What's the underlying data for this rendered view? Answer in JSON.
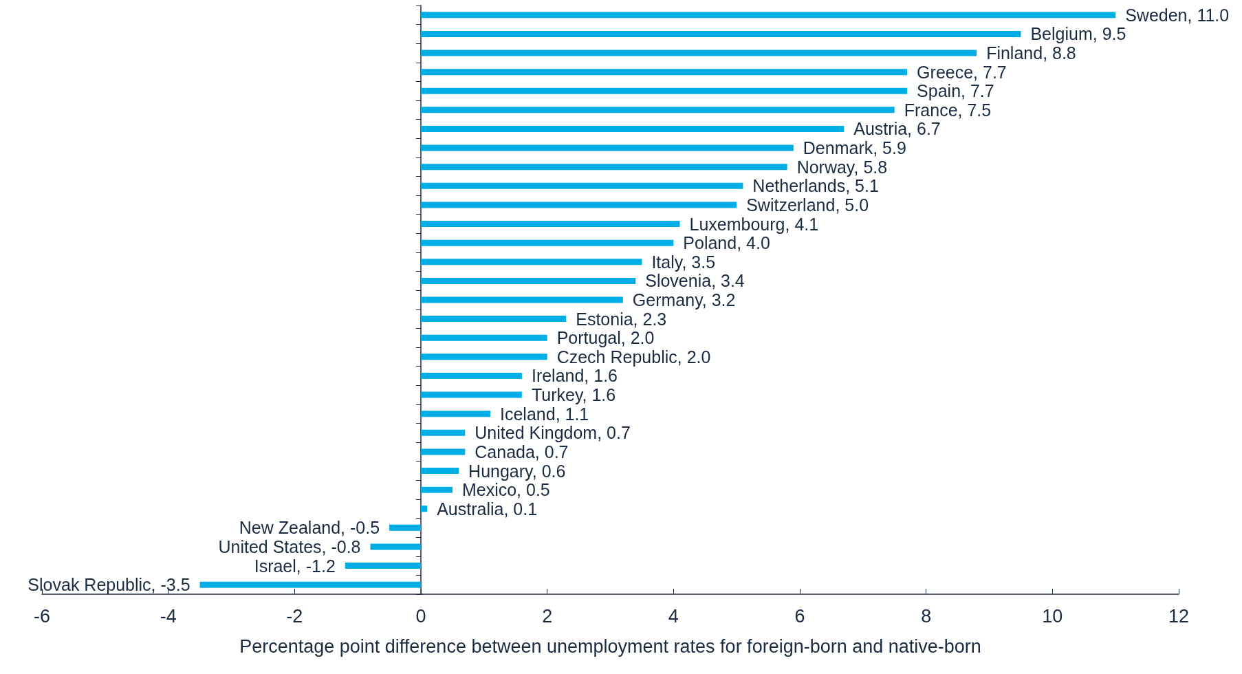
{
  "chart_data": {
    "type": "bar",
    "orientation": "horizontal",
    "xlabel": "Percentage point difference between unemployment rates for foreign-born and native-born",
    "categories": [
      null,
      null,
      null,
      null,
      null,
      null,
      null,
      null,
      null,
      null,
      null,
      null,
      null,
      null,
      null,
      null,
      null,
      null,
      null,
      null,
      null,
      null,
      null,
      null,
      null,
      null,
      null,
      null,
      null,
      null,
      null
    ],
    "values": [
      11.0,
      9.5,
      8.8,
      7.7,
      7.7,
      7.5,
      6.7,
      5.9,
      5.8,
      5.1,
      5.0,
      4.1,
      4.0,
      3.5,
      3.4,
      3.2,
      2.3,
      2.0,
      2.0,
      1.6,
      1.6,
      1.1,
      0.7,
      0.7,
      0.6,
      0.5,
      0.1,
      -0.5,
      -0.8,
      -1.2,
      -3.5
    ],
    "value_labels": [
      "Sweden, 11.0",
      "Belgium, 9.5",
      "Finland, 8.8",
      "Greece, 7.7",
      "Spain, 7.7",
      "France, 7.5",
      "Austria, 6.7",
      "Denmark, 5.9",
      "Norway, 5.8",
      "Netherlands, 5.1",
      "Switzerland, 5.0",
      "Luxembourg, 4.1",
      "Poland, 4.0",
      "Italy, 3.5",
      "Slovenia, 3.4",
      "Germany, 3.2",
      "Estonia, 2.3",
      "Portugal, 2.0",
      "Czech Republic, 2.0",
      "Ireland, 1.6",
      "Turkey, 1.6",
      "Iceland, 1.1",
      "United Kingdom, 0.7",
      "Canada, 0.7",
      "Hungary, 0.6",
      "Mexico, 0.5",
      "Australia, 0.1",
      "New Zealand, -0.5",
      "United States, -0.8",
      "Israel, -1.2",
      "Slovak Republic, -3.5"
    ],
    "color": "#00aee6",
    "xlim": [
      -6,
      12
    ],
    "xticks": [
      -6,
      -4,
      -2,
      0,
      2,
      4,
      6,
      8,
      10,
      12
    ],
    "tick_labels": "x"
  }
}
